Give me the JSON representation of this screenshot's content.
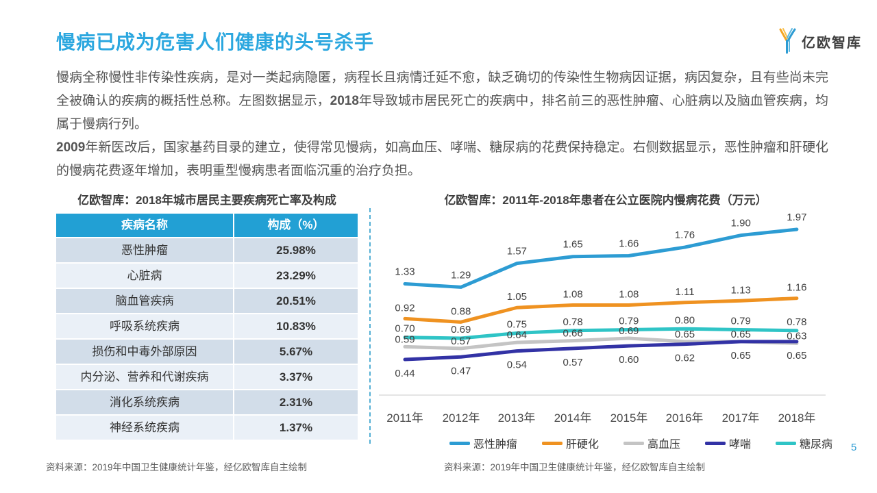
{
  "logo": {
    "text": "亿欧智库"
  },
  "title": "慢病已成为危害人们健康的头号杀手",
  "paragraphs": [
    {
      "pre": "慢病全称慢性非传染性疾病，是对一类起病隐匿，病程长且病情迁延不愈，缺乏确切的传染性生物病因证据，病因复杂，且有些尚未完全被确认的疾病的概括性总称。左图数据显示，",
      "bold": "2018",
      "post": "年导致城市居民死亡的疾病中，排名前三的恶性肿瘤、心脏病以及脑血管疾病，均属于慢病行列。"
    },
    {
      "pre": "",
      "bold": "2009",
      "post": "年新医改后，国家基药目录的建立，使得常见慢病，如高血压、哮喘、糖尿病的花费保持稳定。右侧数据显示，恶性肿瘤和肝硬化的慢病花费逐年增加，表明重型慢病患者面临沉重的治疗负担。"
    }
  ],
  "table": {
    "title": "亿欧智库：2018年城市居民主要疾病死亡率及构成",
    "headers": [
      "疾病名称",
      "构成（%）"
    ],
    "rows": [
      [
        "恶性肿瘤",
        "25.98%"
      ],
      [
        "心脏病",
        "23.29%"
      ],
      [
        "脑血管疾病",
        "20.51%"
      ],
      [
        "呼吸系统疾病",
        "10.83%"
      ],
      [
        "损伤和中毒外部原因",
        "5.67%"
      ],
      [
        "内分泌、营养和代谢疾病",
        "3.37%"
      ],
      [
        "消化系统疾病",
        "2.31%"
      ],
      [
        "神经系统疾病",
        "1.37%"
      ]
    ]
  },
  "chart_data": {
    "type": "line",
    "title": "亿欧智库：2011年-2018年患者在公立医院内慢病花费（万元）",
    "unit": "万元",
    "categories": [
      "2011年",
      "2012年",
      "2013年",
      "2014年",
      "2015年",
      "2016年",
      "2017年",
      "2018年"
    ],
    "series": [
      {
        "name": "恶性肿瘤",
        "color": "#2D9CD3",
        "values": [
          1.33,
          1.29,
          1.57,
          1.65,
          1.66,
          1.76,
          1.9,
          1.97
        ]
      },
      {
        "name": "肝硬化",
        "color": "#EF9221",
        "values": [
          0.92,
          0.88,
          1.05,
          1.08,
          1.08,
          1.11,
          1.13,
          1.16
        ]
      },
      {
        "name": "高血压",
        "color": "#C4C4C4",
        "values": [
          0.59,
          0.57,
          0.64,
          0.66,
          0.69,
          0.65,
          0.65,
          0.63
        ]
      },
      {
        "name": "哮喘",
        "color": "#3232A5",
        "values": [
          0.44,
          0.47,
          0.54,
          0.57,
          0.6,
          0.62,
          0.65,
          0.65
        ]
      },
      {
        "name": "糖尿病",
        "color": "#2FC4C6",
        "values": [
          0.7,
          0.69,
          0.75,
          0.78,
          0.79,
          0.8,
          0.79,
          0.78
        ]
      }
    ],
    "ylim": [
      0.4,
      2.0
    ],
    "grid": false,
    "legend_position": "bottom",
    "label_color": "#404040",
    "axis_color": "#DBDBDB"
  },
  "sources": {
    "left": "资料来源：2019年中国卫生健康统计年鉴，经亿欧智库自主绘制",
    "right": "资料来源：2019年中国卫生健康统计年鉴，经亿欧智库自主绘制"
  },
  "page": {
    "number": "5"
  }
}
